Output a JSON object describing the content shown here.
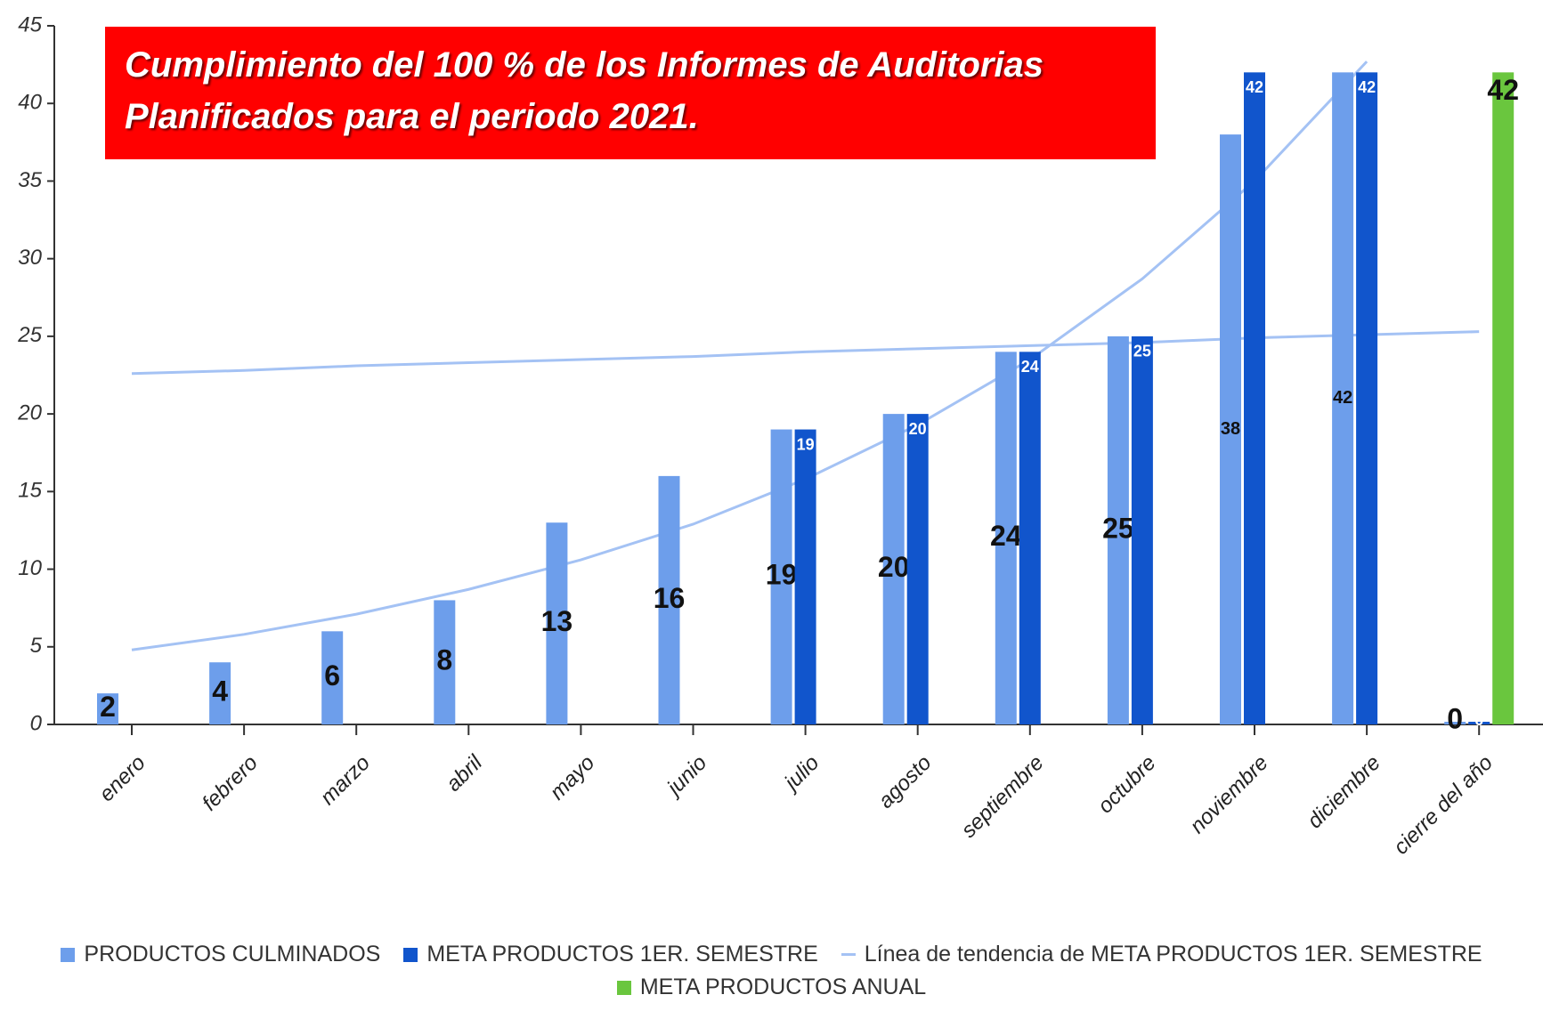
{
  "chart_data": {
    "type": "bar",
    "title": "Cumplimiento del 100 % de los Informes de Auditorias Planificados para el periodo 2021.",
    "categories": [
      "enero",
      "febrero",
      "marzo",
      "abril",
      "mayo",
      "junio",
      "julio",
      "agosto",
      "septiembre",
      "octubre",
      "noviembre",
      "diciembre",
      "cierre del año"
    ],
    "series": [
      {
        "name": "PRODUCTOS CULMINADOS",
        "color": "#6d9eeb",
        "values": [
          2,
          4,
          6,
          8,
          13,
          16,
          19,
          20,
          24,
          25,
          38,
          42,
          0
        ]
      },
      {
        "name": "META PRODUCTOS 1ER. SEMESTRE",
        "color": "#1155cc",
        "values": [
          null,
          null,
          null,
          null,
          null,
          null,
          19,
          20,
          24,
          25,
          42,
          42,
          0
        ]
      },
      {
        "name": "META PRODUCTOS ANUAL",
        "color": "#6ac63e",
        "values": [
          null,
          null,
          null,
          null,
          null,
          null,
          null,
          null,
          null,
          null,
          null,
          null,
          42
        ]
      }
    ],
    "trend": {
      "name": "Línea de tendencia de META PRODUCTOS 1ER. SEMESTRE",
      "color": "#a4c2f4",
      "lines": [
        {
          "values": [
            4.8,
            5.8,
            7.1,
            8.7,
            10.6,
            12.9,
            15.8,
            19.3,
            23.5,
            28.7,
            35.0,
            42.7,
            null
          ]
        },
        {
          "values": [
            22.6,
            22.8,
            23.1,
            23.3,
            23.5,
            23.7,
            24.0,
            24.2,
            24.4,
            24.6,
            24.9,
            25.1,
            25.3
          ]
        }
      ]
    },
    "ylim": [
      0,
      45
    ],
    "yticks": [
      0,
      5,
      10,
      15,
      20,
      25,
      30,
      35,
      40,
      45
    ]
  }
}
